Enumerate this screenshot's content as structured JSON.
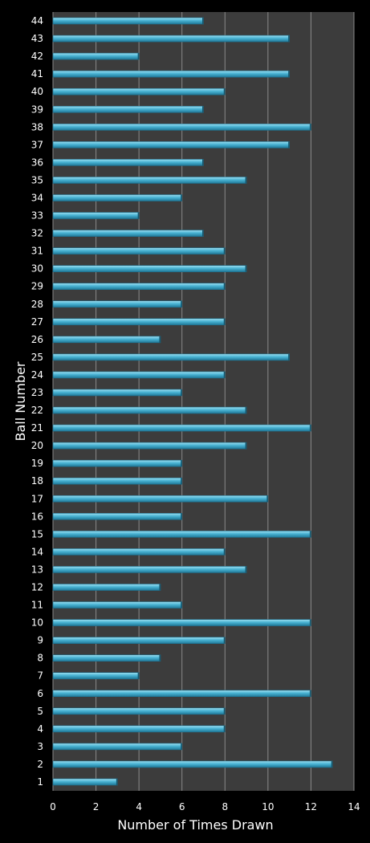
{
  "chart_data": {
    "type": "bar",
    "orientation": "horizontal",
    "categories": [
      "1",
      "2",
      "3",
      "4",
      "5",
      "6",
      "7",
      "8",
      "9",
      "10",
      "11",
      "12",
      "13",
      "14",
      "15",
      "16",
      "17",
      "18",
      "19",
      "20",
      "21",
      "22",
      "23",
      "24",
      "25",
      "26",
      "27",
      "28",
      "29",
      "30",
      "31",
      "32",
      "33",
      "34",
      "35",
      "36",
      "37",
      "38",
      "39",
      "40",
      "41",
      "42",
      "43",
      "44"
    ],
    "values": [
      3,
      13,
      6,
      8,
      8,
      12,
      4,
      5,
      8,
      12,
      6,
      5,
      9,
      8,
      12,
      6,
      10,
      6,
      6,
      9,
      12,
      9,
      6,
      8,
      11,
      5,
      8,
      6,
      8,
      9,
      8,
      7,
      4,
      6,
      9,
      7,
      11,
      12,
      7,
      8,
      11,
      4,
      11,
      7
    ],
    "xlabel": "Number of Times Drawn",
    "ylabel": "Ball Number",
    "xlim": [
      0,
      14
    ],
    "xticks": [
      "0",
      "2",
      "4",
      "6",
      "8",
      "10",
      "12",
      "14"
    ],
    "grid": true,
    "colors": {
      "background": "#000000",
      "plot_area": "#3c3c3c",
      "gridline": "#8a8a8a",
      "bar": "#49b3d3",
      "bar_edge": "#1e6f8c",
      "text": "#ffffff"
    }
  }
}
